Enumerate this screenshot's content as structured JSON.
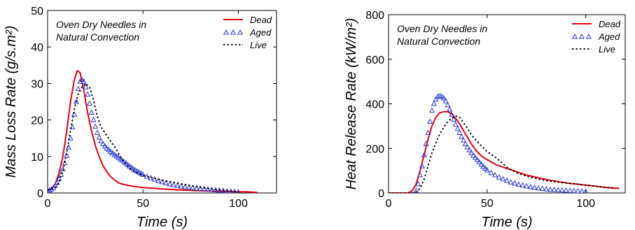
{
  "chart_data": [
    {
      "type": "line",
      "title": "",
      "annotation": [
        "Oven Dry Needles in",
        "Natural Convection"
      ],
      "xlabel": "Time (s)",
      "ylabel": "Mass Loss Rate (g/s.m²)",
      "xlim": [
        0,
        120
      ],
      "ylim": [
        0,
        50
      ],
      "xticks": [
        0,
        50,
        100
      ],
      "yticks": [
        0,
        10,
        20,
        30,
        40,
        50
      ],
      "grid": false,
      "legend_position": "top-right",
      "series": [
        {
          "name": "Dead",
          "style": "solid",
          "marker": "none",
          "color": "#e8000b",
          "points": [
            [
              0,
              0.8
            ],
            [
              2,
              1.2
            ],
            [
              4,
              2.5
            ],
            [
              6,
              5.5
            ],
            [
              8,
              10
            ],
            [
              10,
              17
            ],
            [
              12,
              25
            ],
            [
              14,
              31
            ],
            [
              15.5,
              33.5
            ],
            [
              17,
              33
            ],
            [
              19,
              28
            ],
            [
              21,
              22
            ],
            [
              23,
              17
            ],
            [
              25,
              13
            ],
            [
              27,
              10
            ],
            [
              29,
              7.5
            ],
            [
              31,
              5.8
            ],
            [
              33,
              4.5
            ],
            [
              35,
              3.6
            ],
            [
              37,
              2.8
            ],
            [
              40,
              2.3
            ],
            [
              45,
              1.8
            ],
            [
              50,
              1.5
            ],
            [
              60,
              1.1
            ],
            [
              70,
              0.8
            ],
            [
              80,
              0.6
            ],
            [
              90,
              0.4
            ],
            [
              100,
              0.3
            ],
            [
              105,
              0.3
            ],
            [
              110,
              0.1
            ]
          ]
        },
        {
          "name": "Aged",
          "style": "markers",
          "marker": "triangle",
          "color": "#2b39d8",
          "points": [
            [
              0,
              0.5
            ],
            [
              1,
              0.7
            ],
            [
              2,
              1
            ],
            [
              3,
              1.4
            ],
            [
              4,
              2
            ],
            [
              5,
              2.8
            ],
            [
              6,
              3.8
            ],
            [
              7,
              5
            ],
            [
              8,
              6.5
            ],
            [
              9,
              8.2
            ],
            [
              10,
              10.2
            ],
            [
              11,
              12.5
            ],
            [
              12,
              15
            ],
            [
              13,
              18
            ],
            [
              14,
              21.5
            ],
            [
              15,
              25
            ],
            [
              16,
              28.5
            ],
            [
              17,
              30.5
            ],
            [
              18,
              31
            ],
            [
              19,
              30.5
            ],
            [
              20,
              29
            ],
            [
              21,
              27
            ],
            [
              22,
              24.5
            ],
            [
              23,
              22
            ],
            [
              24,
              20
            ],
            [
              25,
              18.2
            ],
            [
              26,
              16.5
            ],
            [
              27,
              15.2
            ],
            [
              28,
              14.2
            ],
            [
              29,
              13.4
            ],
            [
              30,
              12.8
            ],
            [
              31,
              12.2
            ],
            [
              32,
              11.8
            ],
            [
              33,
              11.3
            ],
            [
              34,
              10.9
            ],
            [
              35,
              10.5
            ],
            [
              36,
              10.1
            ],
            [
              37,
              9.7
            ],
            [
              38,
              9.3
            ],
            [
              39,
              8.9
            ],
            [
              40,
              8.5
            ],
            [
              41,
              8.1
            ],
            [
              42,
              7.7
            ],
            [
              43,
              7.3
            ],
            [
              44,
              6.9
            ],
            [
              45,
              6.5
            ],
            [
              46,
              6.2
            ],
            [
              47,
              5.9
            ],
            [
              48,
              5.6
            ],
            [
              49,
              5.3
            ],
            [
              50,
              5
            ],
            [
              52,
              4.5
            ],
            [
              54,
              4.1
            ],
            [
              56,
              3.7
            ],
            [
              58,
              3.3
            ],
            [
              60,
              3
            ],
            [
              62,
              2.7
            ],
            [
              64,
              2.4
            ],
            [
              66,
              2.2
            ],
            [
              68,
              2
            ],
            [
              70,
              1.8
            ],
            [
              72,
              1.6
            ],
            [
              74,
              1.5
            ],
            [
              76,
              1.4
            ],
            [
              78,
              1.3
            ],
            [
              80,
              1.2
            ],
            [
              82,
              1.1
            ],
            [
              84,
              1
            ],
            [
              86,
              0.9
            ],
            [
              88,
              0.8
            ],
            [
              90,
              0.7
            ],
            [
              92,
              0.6
            ],
            [
              94,
              0.5
            ],
            [
              96,
              0.4
            ],
            [
              98,
              0.3
            ],
            [
              100,
              0.2
            ]
          ]
        },
        {
          "name": "Live",
          "style": "dotted",
          "marker": "none",
          "color": "#000000",
          "points": [
            [
              0,
              0.8
            ],
            [
              4,
              1.5
            ],
            [
              6,
              3
            ],
            [
              8,
              6
            ],
            [
              10,
              11
            ],
            [
              12,
              17
            ],
            [
              14,
              23
            ],
            [
              16,
              27
            ],
            [
              18,
              29
            ],
            [
              20,
              30
            ],
            [
              22,
              29
            ],
            [
              24,
              25.5
            ],
            [
              26,
              21
            ],
            [
              28,
              18
            ],
            [
              30,
              16.5
            ],
            [
              32,
              15
            ],
            [
              34,
              13.5
            ],
            [
              36,
              12
            ],
            [
              38,
              10
            ],
            [
              40,
              8.5
            ],
            [
              42,
              7.2
            ],
            [
              45,
              6
            ],
            [
              50,
              4.8
            ],
            [
              55,
              4.2
            ],
            [
              60,
              3.5
            ],
            [
              70,
              2.5
            ],
            [
              80,
              1.5
            ],
            [
              90,
              0.8
            ],
            [
              100,
              0.3
            ]
          ]
        }
      ]
    },
    {
      "type": "line",
      "title": "",
      "annotation": [
        "Oven Dry Needles in",
        "Natural Convection"
      ],
      "xlabel": "Time (s)",
      "ylabel": "Heat Release Rate (kW/m²)",
      "xlim": [
        0,
        120
      ],
      "ylim": [
        0,
        800
      ],
      "xticks": [
        0,
        50,
        100
      ],
      "yticks": [
        0,
        200,
        400,
        600,
        800
      ],
      "grid": false,
      "legend_position": "top-right",
      "series": [
        {
          "name": "Dead",
          "style": "solid",
          "marker": "none",
          "color": "#e8000b",
          "points": [
            [
              0,
              0
            ],
            [
              10,
              0
            ],
            [
              12,
              10
            ],
            [
              14,
              40
            ],
            [
              16,
              100
            ],
            [
              18,
              170
            ],
            [
              20,
              240
            ],
            [
              22,
              300
            ],
            [
              24,
              340
            ],
            [
              26,
              360
            ],
            [
              28,
              365
            ],
            [
              30,
              365
            ],
            [
              32,
              355
            ],
            [
              34,
              335
            ],
            [
              36,
              310
            ],
            [
              38,
              280
            ],
            [
              40,
              250
            ],
            [
              42,
              220
            ],
            [
              44,
              195
            ],
            [
              46,
              175
            ],
            [
              48,
              160
            ],
            [
              50,
              150
            ],
            [
              55,
              125
            ],
            [
              60,
              110
            ],
            [
              65,
              95
            ],
            [
              70,
              80
            ],
            [
              80,
              60
            ],
            [
              90,
              45
            ],
            [
              100,
              35
            ],
            [
              110,
              25
            ],
            [
              117,
              20
            ]
          ]
        },
        {
          "name": "Aged",
          "style": "markers",
          "marker": "triangle",
          "color": "#2b39d8",
          "points": [
            [
              14,
              10
            ],
            [
              15,
              40
            ],
            [
              16,
              80
            ],
            [
              17,
              120
            ],
            [
              18,
              170
            ],
            [
              19,
              220
            ],
            [
              20,
              270
            ],
            [
              21,
              320
            ],
            [
              22,
              370
            ],
            [
              23,
              400
            ],
            [
              24,
              420
            ],
            [
              25,
              432
            ],
            [
              26,
              435
            ],
            [
              27,
              432
            ],
            [
              28,
              425
            ],
            [
              29,
              412
            ],
            [
              30,
              395
            ],
            [
              31,
              375
            ],
            [
              32,
              352
            ],
            [
              33,
              330
            ],
            [
              34,
              308
            ],
            [
              35,
              288
            ],
            [
              36,
              270
            ],
            [
              37,
              252
            ],
            [
              38,
              236
            ],
            [
              39,
              220
            ],
            [
              40,
              205
            ],
            [
              41,
              192
            ],
            [
              42,
              180
            ],
            [
              43,
              168
            ],
            [
              44,
              158
            ],
            [
              45,
              148
            ],
            [
              46,
              138
            ],
            [
              47,
              128
            ],
            [
              48,
              118
            ],
            [
              49,
              110
            ],
            [
              50,
              102
            ],
            [
              52,
              90
            ],
            [
              54,
              80
            ],
            [
              56,
              70
            ],
            [
              58,
              62
            ],
            [
              60,
              55
            ],
            [
              62,
              48
            ],
            [
              64,
              43
            ],
            [
              66,
              38
            ],
            [
              68,
              34
            ],
            [
              70,
              30
            ],
            [
              72,
              27
            ],
            [
              74,
              24
            ],
            [
              76,
              21
            ],
            [
              78,
              19
            ],
            [
              80,
              17
            ],
            [
              82,
              15
            ],
            [
              84,
              14
            ],
            [
              86,
              13
            ],
            [
              88,
              12
            ],
            [
              90,
              11
            ],
            [
              92,
              10
            ],
            [
              94,
              9
            ],
            [
              96,
              8
            ],
            [
              98,
              7
            ],
            [
              100,
              6
            ]
          ]
        },
        {
          "name": "Live",
          "style": "dotted",
          "marker": "none",
          "color": "#000000",
          "points": [
            [
              0,
              0
            ],
            [
              12,
              0
            ],
            [
              14,
              5
            ],
            [
              16,
              20
            ],
            [
              18,
              60
            ],
            [
              20,
              120
            ],
            [
              22,
              180
            ],
            [
              24,
              225
            ],
            [
              26,
              265
            ],
            [
              28,
              295
            ],
            [
              30,
              320
            ],
            [
              32,
              335
            ],
            [
              34,
              345
            ],
            [
              36,
              340
            ],
            [
              38,
              315
            ],
            [
              40,
              290
            ],
            [
              42,
              260
            ],
            [
              45,
              230
            ],
            [
              50,
              185
            ],
            [
              55,
              155
            ],
            [
              60,
              115
            ],
            [
              65,
              90
            ],
            [
              70,
              75
            ],
            [
              80,
              55
            ],
            [
              90,
              45
            ],
            [
              100,
              35
            ],
            [
              110,
              25
            ],
            [
              115,
              20
            ]
          ]
        }
      ]
    }
  ]
}
